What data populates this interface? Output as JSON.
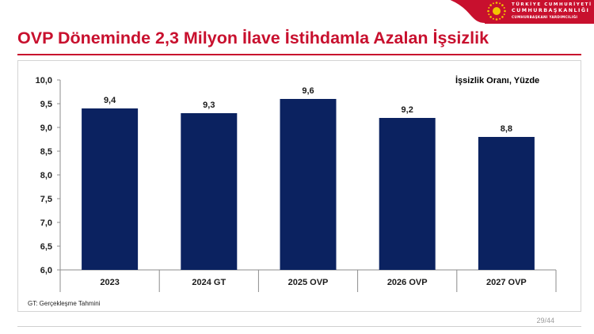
{
  "theme": {
    "accent": "#c8102e",
    "bar_color": "#0b2260",
    "emblem_color": "#f2c500"
  },
  "header": {
    "logo_line1": "TÜRKİYE CUMHURİYETİ",
    "logo_line2": "CUMHURBAŞKANLIĞI",
    "logo_line3": "CUMHURBAŞKANI YARDIMCILIĞI",
    "emblem_icon": "presidential-emblem-icon"
  },
  "slide": {
    "title": "OVP Döneminde 2,3 Milyon İlave İstihdamla Azalan İşsizlik",
    "footnote": "GT: Gerçekleşme Tahmini",
    "page_number": "29/44"
  },
  "chart_data": {
    "type": "bar",
    "title": "",
    "series_name": "İşsizlik Oranı, Yüzde",
    "categories": [
      "2023",
      "2024 GT",
      "2025 OVP",
      "2026 OVP",
      "2027 OVP"
    ],
    "values": [
      9.4,
      9.3,
      9.6,
      9.2,
      8.8
    ],
    "data_labels": [
      "9,4",
      "9,3",
      "9,6",
      "9,2",
      "8,8"
    ],
    "ylim": [
      6.0,
      10.0
    ],
    "yticks": [
      6.0,
      6.5,
      7.0,
      7.5,
      8.0,
      8.5,
      9.0,
      9.5,
      10.0
    ],
    "ytick_labels": [
      "6,0",
      "6,5",
      "7,0",
      "7,5",
      "8,0",
      "8,5",
      "9,0",
      "9,5",
      "10,0"
    ],
    "xlabel": "",
    "ylabel": "",
    "grid": false,
    "legend": "top-right"
  }
}
